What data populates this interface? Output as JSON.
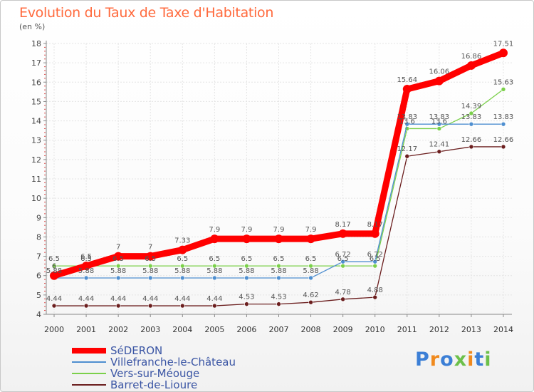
{
  "chart_data": {
    "type": "line",
    "title": "Evolution du Taux de Taxe d'Habitation",
    "unit_label": "(en %)",
    "x": [
      "2000",
      "2001",
      "2002",
      "2003",
      "2004",
      "2005",
      "2006",
      "2007",
      "2008",
      "2009",
      "2010",
      "2011",
      "2012",
      "2013",
      "2014"
    ],
    "ylim": [
      4,
      18
    ],
    "yticks": [
      "4",
      "5",
      "6",
      "7",
      "8",
      "9",
      "10",
      "11",
      "12",
      "13",
      "14",
      "15",
      "16",
      "17",
      "18"
    ],
    "grid": true,
    "legend_position": "bottom-left",
    "series": [
      {
        "name": "SéDERON",
        "color": "#ff0000",
        "values": [
          6,
          6.5,
          7,
          7,
          7.33,
          7.9,
          7.9,
          7.9,
          7.9,
          8.17,
          8.17,
          15.64,
          16.06,
          16.86,
          17.51
        ],
        "labels": [
          "6",
          "6.5",
          "7",
          "7",
          "7.33",
          "7.9",
          "7.9",
          "7.9",
          "7.9",
          "8.17",
          "8.17",
          "15.64",
          "16.06",
          "16.86",
          "17.51"
        ]
      },
      {
        "name": "Villefranche-le-Château",
        "color": "#4f8fd0",
        "values": [
          5.88,
          5.88,
          5.88,
          5.88,
          5.88,
          5.88,
          5.88,
          5.88,
          5.88,
          6.72,
          6.72,
          13.83,
          13.83,
          13.83,
          13.83
        ],
        "labels": [
          "5.88",
          "5.88",
          "5.88",
          "5.88",
          "5.88",
          "5.88",
          "5.88",
          "5.88",
          "5.88",
          "6.72",
          "6.72",
          "13.83",
          "13.83",
          "13.83",
          "13.83"
        ]
      },
      {
        "name": "Vers-sur-Méouge",
        "color": "#7bd04a",
        "values": [
          6.5,
          6.5,
          6.5,
          6.5,
          6.5,
          6.5,
          6.5,
          6.5,
          6.5,
          6.5,
          6.5,
          13.6,
          13.6,
          14.39,
          15.63
        ],
        "labels": [
          "6.5",
          "6.5",
          "6.5",
          "6.5",
          "6.5",
          "6.5",
          "6.5",
          "6.5",
          "6.5",
          "6.5",
          "6.5",
          "13.6",
          "13.6",
          "14.39",
          "15.63"
        ]
      },
      {
        "name": "Barret-de-Lioure",
        "color": "#6b1e1e",
        "values": [
          4.44,
          4.44,
          4.44,
          4.44,
          4.44,
          4.44,
          4.53,
          4.53,
          4.62,
          4.78,
          4.88,
          12.17,
          12.41,
          12.66,
          12.66
        ],
        "labels": [
          "4.44",
          "4.44",
          "4.44",
          "4.44",
          "4.44",
          "4.44",
          "4.53",
          "4.53",
          "4.62",
          "4.78",
          "4.88",
          "12.17",
          "12.41",
          "12.66",
          "12.66"
        ]
      }
    ]
  },
  "logo": {
    "letters": [
      "P",
      "r",
      "o",
      "x",
      "i",
      "t",
      "i"
    ],
    "colors": [
      "#3c7fd6",
      "#f08a1e",
      "#3c7fd6",
      "#6cc04a",
      "#f08a1e",
      "#3c7fd6",
      "#6cc04a"
    ]
  }
}
